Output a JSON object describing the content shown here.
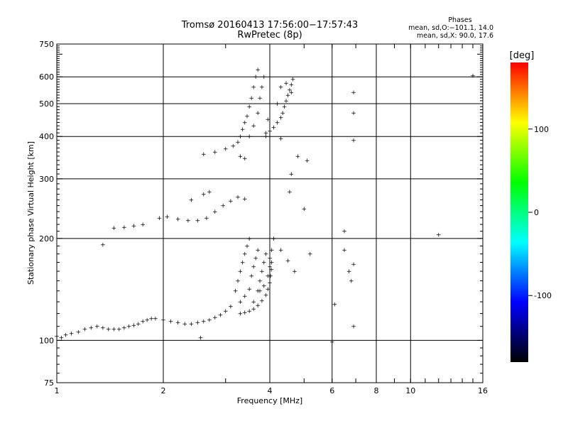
{
  "chart_data": {
    "type": "scatter",
    "title": "Tromsø 20160413 17:56:00−17:57:43",
    "subtitle": "RwPretec (8p)",
    "xlabel": "Frequency [MHz]",
    "ylabel": "Stationary phase Virtual Height [km]",
    "x_scale": "log",
    "y_scale": "log",
    "xlim": [
      1,
      16
    ],
    "ylim": [
      75,
      750
    ],
    "x_ticks": [
      1,
      2,
      4,
      6,
      8,
      10,
      16
    ],
    "y_ticks": [
      75,
      100,
      200,
      300,
      400,
      500,
      600,
      750
    ],
    "x_gridlines": [
      2,
      4,
      6,
      8,
      10
    ],
    "y_gridlines": [
      100,
      200,
      300,
      400,
      500,
      600
    ],
    "grid": true,
    "stats": {
      "heading": "Phases",
      "line1": "mean, sd,O:−101.1, 14.0",
      "line2": "mean, sd,X:  90.0, 17.6"
    },
    "colorbar": {
      "label": "[deg]",
      "range": [
        -180,
        180
      ],
      "ticks": [
        100,
        0,
        -100
      ],
      "colors": [
        "#ff0000",
        "#ffff00",
        "#00ff00",
        "#00ffff",
        "#0000ff",
        "#000000"
      ]
    },
    "series": [
      {
        "mode": "O",
        "phase_mean": -101.1,
        "color": "#1a1aff",
        "points": [
          [
            1.0,
            103
          ],
          [
            1.03,
            102
          ],
          [
            1.06,
            104
          ],
          [
            1.1,
            105
          ],
          [
            1.15,
            106
          ],
          [
            1.2,
            108
          ],
          [
            1.25,
            109
          ],
          [
            1.3,
            110
          ],
          [
            1.35,
            109
          ],
          [
            1.4,
            108
          ],
          [
            1.45,
            108
          ],
          [
            1.5,
            108
          ],
          [
            1.55,
            109
          ],
          [
            1.6,
            110
          ],
          [
            1.65,
            111
          ],
          [
            1.7,
            112
          ],
          [
            1.75,
            114
          ],
          [
            1.8,
            115
          ],
          [
            1.85,
            116
          ],
          [
            1.9,
            116
          ],
          [
            2.0,
            115
          ],
          [
            2.1,
            114
          ],
          [
            2.2,
            113
          ],
          [
            2.3,
            112
          ],
          [
            2.4,
            112
          ],
          [
            2.5,
            113
          ],
          [
            2.6,
            114
          ],
          [
            2.7,
            115
          ],
          [
            2.8,
            117
          ],
          [
            2.9,
            119
          ],
          [
            3.0,
            122
          ],
          [
            3.1,
            126
          ],
          [
            3.2,
            140
          ],
          [
            3.25,
            150
          ],
          [
            3.3,
            160
          ],
          [
            3.35,
            170
          ],
          [
            3.4,
            180
          ],
          [
            3.45,
            190
          ],
          [
            3.5,
            200
          ],
          [
            3.3,
            130
          ],
          [
            3.4,
            135
          ],
          [
            3.5,
            142
          ],
          [
            3.55,
            155
          ],
          [
            3.6,
            165
          ],
          [
            3.65,
            175
          ],
          [
            3.7,
            185
          ],
          [
            3.6,
            130
          ],
          [
            3.7,
            140
          ],
          [
            3.75,
            150
          ],
          [
            3.8,
            160
          ],
          [
            3.85,
            170
          ],
          [
            3.9,
            180
          ],
          [
            1.45,
            215
          ],
          [
            1.55,
            216
          ],
          [
            1.65,
            218
          ],
          [
            1.75,
            220
          ],
          [
            1.95,
            230
          ],
          [
            2.05,
            232
          ],
          [
            2.2,
            228
          ],
          [
            2.35,
            226
          ],
          [
            2.5,
            226
          ],
          [
            2.65,
            230
          ],
          [
            2.8,
            240
          ],
          [
            2.95,
            250
          ],
          [
            3.1,
            258
          ],
          [
            3.25,
            265
          ],
          [
            3.4,
            262
          ],
          [
            2.4,
            260
          ],
          [
            2.6,
            270
          ],
          [
            2.7,
            275
          ],
          [
            2.6,
            355
          ],
          [
            2.8,
            360
          ],
          [
            3.0,
            368
          ],
          [
            3.15,
            375
          ],
          [
            3.25,
            385
          ],
          [
            3.3,
            400
          ],
          [
            3.35,
            420
          ],
          [
            3.4,
            440
          ],
          [
            3.45,
            460
          ],
          [
            3.5,
            490
          ],
          [
            3.55,
            520
          ],
          [
            3.6,
            560
          ],
          [
            3.65,
            600
          ],
          [
            3.7,
            630
          ],
          [
            3.5,
            400
          ],
          [
            3.6,
            430
          ],
          [
            3.7,
            470
          ],
          [
            3.75,
            520
          ],
          [
            3.8,
            560
          ],
          [
            3.85,
            600
          ],
          [
            3.3,
            350
          ],
          [
            3.4,
            345
          ],
          [
            3.9,
            400
          ],
          [
            3.95,
            450
          ],
          [
            4.1,
            200
          ],
          [
            4.3,
            185
          ],
          [
            4.5,
            172
          ],
          [
            4.7,
            160
          ],
          [
            5.2,
            180
          ],
          [
            6.8,
            150
          ],
          [
            6.7,
            160
          ],
          [
            6.5,
            185
          ],
          [
            6.9,
            110
          ],
          [
            6.9,
            390
          ],
          [
            6.9,
            540
          ],
          [
            5.1,
            340
          ],
          [
            4.8,
            350
          ],
          [
            4.3,
            395
          ],
          [
            5.0,
            245
          ]
        ]
      },
      {
        "mode": "X",
        "phase_mean": 90.0,
        "color": "#ffd700",
        "points": [
          [
            3.3,
            120
          ],
          [
            3.4,
            121
          ],
          [
            3.5,
            122
          ],
          [
            3.6,
            124
          ],
          [
            3.7,
            127
          ],
          [
            3.8,
            131
          ],
          [
            3.9,
            136
          ],
          [
            3.95,
            142
          ],
          [
            4.0,
            148
          ],
          [
            4.02,
            155
          ],
          [
            4.04,
            162
          ],
          [
            4.05,
            170
          ],
          [
            3.75,
            140
          ],
          [
            3.85,
            145
          ],
          [
            3.95,
            155
          ],
          [
            4.0,
            175
          ],
          [
            4.05,
            185
          ],
          [
            4.0,
            165
          ],
          [
            3.9,
            410
          ],
          [
            4.0,
            415
          ],
          [
            4.1,
            425
          ],
          [
            4.2,
            440
          ],
          [
            4.3,
            455
          ],
          [
            4.35,
            470
          ],
          [
            4.4,
            490
          ],
          [
            4.45,
            510
          ],
          [
            4.5,
            530
          ],
          [
            4.55,
            550
          ],
          [
            4.6,
            570
          ],
          [
            4.65,
            590
          ],
          [
            4.2,
            500
          ],
          [
            4.3,
            560
          ],
          [
            4.45,
            575
          ],
          [
            4.6,
            540
          ]
        ]
      },
      {
        "mode": "other",
        "points": [
          {
            "x": 1.35,
            "y": 192,
            "color": "#c8c800"
          },
          {
            "x": 2.55,
            "y": 102,
            "color": "#ff3300"
          },
          {
            "x": 4.55,
            "y": 275,
            "color": "#ff6600"
          },
          {
            "x": 4.6,
            "y": 310,
            "color": "#00ccff"
          },
          {
            "x": 6.5,
            "y": 210,
            "color": "#ff9900"
          },
          {
            "x": 6.9,
            "y": 470,
            "color": "#ff3300"
          },
          {
            "x": 12.0,
            "y": 205,
            "color": "#00ccaa"
          },
          {
            "x": 6.0,
            "y": 99,
            "color": "#ff6600"
          },
          {
            "x": 6.1,
            "y": 128,
            "color": "#ff9900"
          },
          {
            "x": 15.0,
            "y": 605,
            "color": "#ff0000"
          },
          {
            "x": 6.9,
            "y": 168,
            "color": "#00cccc"
          }
        ]
      }
    ]
  }
}
